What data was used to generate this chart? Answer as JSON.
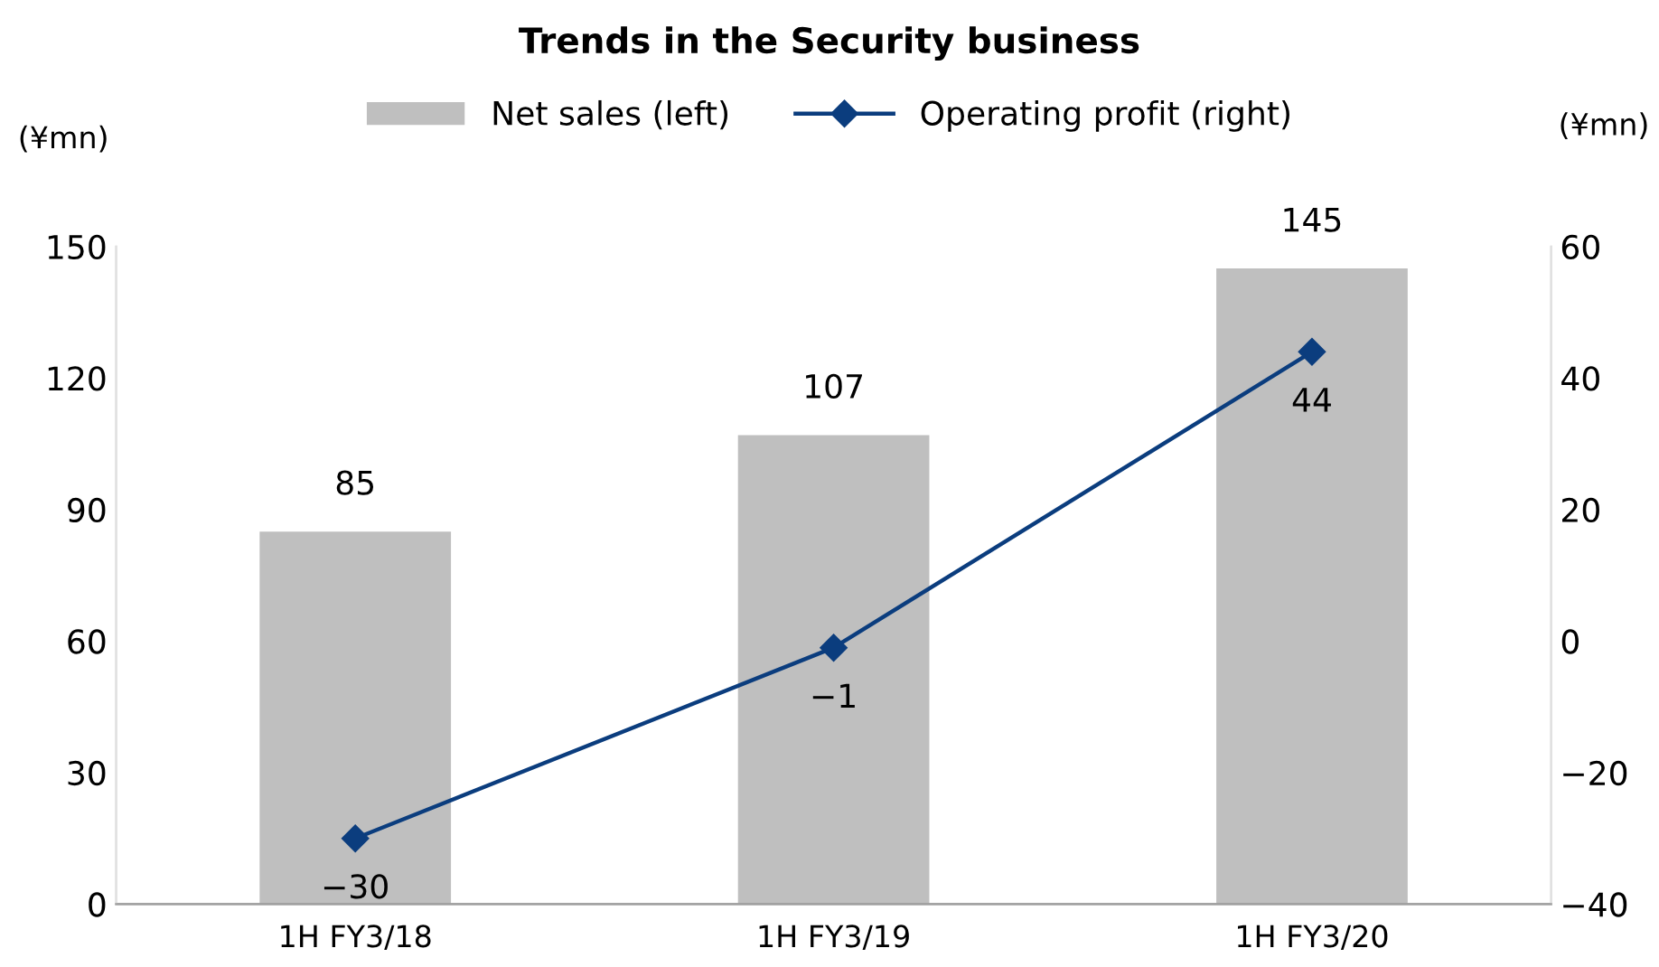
{
  "chart_data": {
    "type": "bar",
    "title": "Trends in the Security business",
    "categories": [
      "1H FY3/18",
      "1H FY3/19",
      "1H FY3/20"
    ],
    "series": [
      {
        "name": "Net sales (left)",
        "color": "#bfbfbf",
        "values": [
          85,
          107,
          145
        ]
      },
      {
        "name": "Operating profit (right)",
        "type": "line",
        "axis": "y2",
        "color": "#0b3d7e",
        "marker": "diamond",
        "values": [
          -30,
          -1,
          44
        ]
      }
    ],
    "ylabel": "(¥mn)",
    "y2label": "(¥mn)",
    "ylim": [
      0,
      150
    ],
    "yticks": [
      0,
      30,
      60,
      90,
      120,
      150
    ],
    "y2lim": [
      -40,
      60
    ],
    "y2ticks": [
      -40,
      -20,
      0,
      20,
      40,
      60
    ],
    "data_labels": true,
    "legend": "top",
    "grid": false
  }
}
